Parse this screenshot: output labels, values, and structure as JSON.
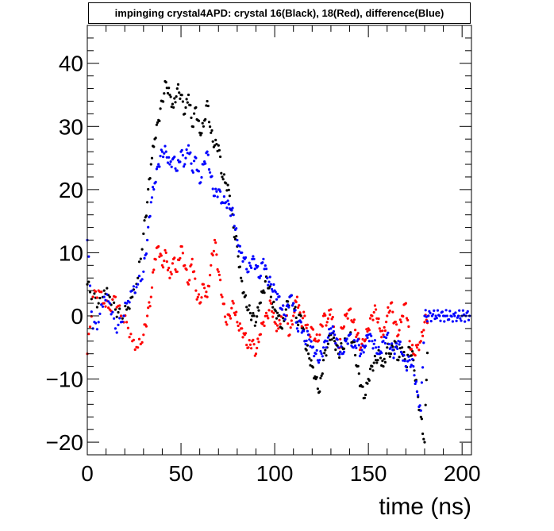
{
  "chart_data": {
    "type": "scatter",
    "title": "impinging crystal4APD: crystal 16(Black), 18(Red), difference(Blue)",
    "xlabel": "time (ns)",
    "ylabel": "",
    "xlim": [
      0,
      205
    ],
    "ylim": [
      -22,
      46
    ],
    "x_ticks": [
      0,
      50,
      100,
      150,
      200
    ],
    "x_tick_labels": [
      "0",
      "50",
      "100",
      "150",
      "200"
    ],
    "y_ticks": [
      -20,
      -10,
      0,
      10,
      20,
      30,
      40
    ],
    "y_tick_labels": [
      "−20",
      "−10",
      "0",
      "10",
      "20",
      "30",
      "40"
    ],
    "series": [
      {
        "color": "#000000",
        "x": [
          0,
          3,
          6,
          9,
          12,
          15,
          18,
          21,
          24,
          27,
          30,
          32,
          34,
          36,
          38,
          40,
          42,
          44,
          46,
          48,
          50,
          52,
          54,
          56,
          58,
          60,
          62,
          64,
          66,
          68,
          70,
          72,
          74,
          76,
          78,
          80,
          82,
          84,
          86,
          88,
          90,
          92,
          94,
          96,
          98,
          100,
          102,
          104,
          106,
          108,
          110,
          112,
          114,
          116,
          118,
          120,
          122,
          124,
          126,
          128,
          130,
          132,
          134,
          136,
          138,
          140,
          142,
          144,
          146,
          148,
          150,
          152,
          154,
          156,
          158,
          160,
          162,
          164,
          166,
          168,
          170,
          172,
          174,
          176,
          178,
          180,
          182
        ],
        "y": [
          5,
          3,
          2,
          4,
          3,
          1,
          0,
          1,
          3,
          6,
          13,
          18,
          24,
          28,
          31,
          34,
          37,
          35,
          33,
          36,
          35,
          32,
          35,
          30,
          33,
          29,
          30,
          34,
          29,
          27,
          27,
          22,
          21,
          19,
          14,
          11,
          6,
          3,
          1,
          0,
          -1,
          2,
          4,
          6,
          3,
          1,
          0,
          -2,
          1,
          3,
          2,
          -1,
          0,
          -4,
          -6,
          -8,
          -10,
          -12,
          -7,
          -5,
          -3,
          -4,
          -6,
          -5,
          -4,
          -3,
          -4,
          -8,
          -11,
          -13,
          -10,
          -8,
          -7,
          -6,
          -8,
          -5,
          -6,
          -4,
          -7,
          -5,
          -8,
          -5,
          -7,
          -12,
          -16,
          -20,
          0
        ]
      },
      {
        "color": "#ff0000",
        "x": [
          0,
          3,
          6,
          9,
          12,
          15,
          18,
          21,
          24,
          27,
          30,
          32,
          34,
          36,
          38,
          40,
          42,
          44,
          46,
          48,
          50,
          52,
          54,
          56,
          58,
          60,
          62,
          64,
          66,
          68,
          70,
          72,
          74,
          76,
          78,
          80,
          82,
          84,
          86,
          88,
          90,
          92,
          94,
          96,
          98,
          100,
          102,
          104,
          106,
          108,
          110,
          112,
          114,
          116,
          118,
          120,
          122,
          124,
          126,
          128,
          130,
          132,
          134,
          136,
          138,
          140,
          142,
          144,
          146,
          148,
          150,
          152,
          154,
          156,
          158,
          160,
          162,
          164,
          166,
          168,
          170,
          172,
          174,
          176,
          178,
          180,
          182
        ],
        "y": [
          -6,
          3,
          4,
          2,
          1,
          3,
          0,
          -1,
          -4,
          -5,
          -3,
          0,
          3,
          9,
          11,
          8,
          10,
          6,
          9,
          7,
          11,
          8,
          5,
          9,
          4,
          2,
          5,
          3,
          8,
          12,
          7,
          3,
          -1,
          0,
          2,
          -1,
          -2,
          -3,
          -5,
          -4,
          -6,
          -3,
          -1,
          0,
          2,
          -1,
          -2,
          1,
          0,
          -3,
          0,
          3,
          -1,
          0,
          -3,
          -2,
          -4,
          -3,
          0,
          -1,
          1,
          -3,
          -5,
          -2,
          0,
          1,
          -1,
          -3,
          -5,
          -4,
          -2,
          0,
          1,
          -2,
          -3,
          0,
          2,
          -1,
          -3,
          0,
          2,
          -4,
          -6,
          -5,
          -4,
          -1,
          0
        ]
      },
      {
        "color": "#0000ff",
        "x": [
          0,
          3,
          6,
          9,
          12,
          15,
          18,
          21,
          24,
          27,
          30,
          32,
          34,
          36,
          38,
          40,
          42,
          44,
          46,
          48,
          50,
          52,
          54,
          56,
          58,
          60,
          62,
          64,
          66,
          68,
          70,
          72,
          74,
          76,
          78,
          80,
          82,
          84,
          86,
          88,
          90,
          92,
          94,
          96,
          98,
          100,
          102,
          104,
          106,
          108,
          110,
          112,
          114,
          116,
          118,
          120,
          122,
          124,
          126,
          128,
          130,
          132,
          134,
          136,
          138,
          140,
          142,
          144,
          146,
          148,
          150,
          152,
          154,
          156,
          158,
          160,
          162,
          164,
          166,
          168,
          170,
          172,
          174,
          176,
          178,
          180,
          182,
          184,
          186,
          188,
          190,
          192,
          194,
          196,
          198,
          200,
          202,
          204
        ],
        "y": [
          12,
          -2,
          -1,
          3,
          2,
          -2,
          -1,
          2,
          4,
          5,
          7,
          12,
          18,
          21,
          24,
          26,
          26,
          24,
          25,
          23,
          26,
          24,
          27,
          23,
          25,
          21,
          24,
          26,
          22,
          19,
          20,
          18,
          18,
          17,
          16,
          12,
          10,
          9,
          7,
          9,
          8,
          6,
          9,
          6,
          5,
          4,
          3,
          1,
          0,
          3,
          2,
          -2,
          -1,
          -4,
          -3,
          -5,
          -6,
          -7,
          -5,
          -4,
          -2,
          -3,
          -5,
          -6,
          -4,
          -3,
          -5,
          -4,
          -6,
          -5,
          -3,
          -4,
          -5,
          -6,
          -4,
          -3,
          -5,
          -6,
          -4,
          -6,
          -8,
          -7,
          -8,
          -12,
          -15,
          0,
          0,
          0,
          0,
          0,
          0,
          0,
          0,
          0,
          0,
          0,
          0,
          0
        ]
      }
    ]
  }
}
